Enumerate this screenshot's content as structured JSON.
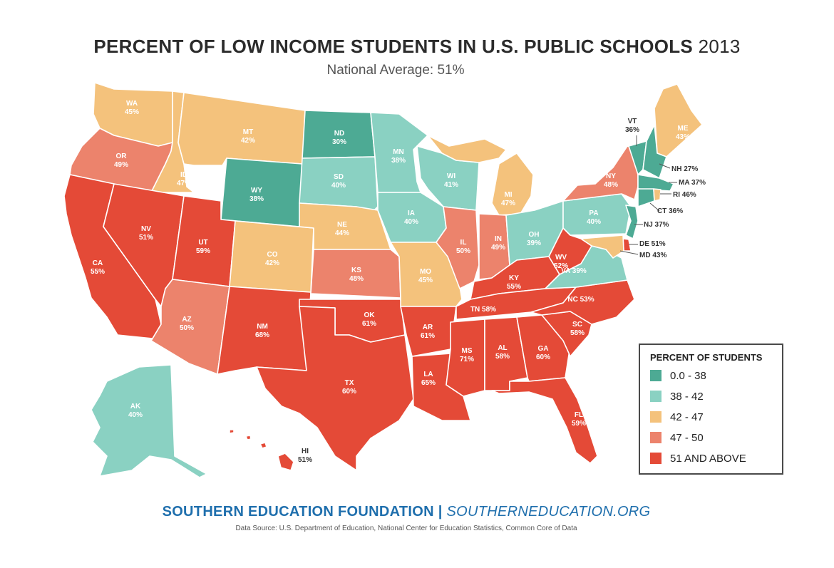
{
  "title": {
    "main": "PERCENT OF LOW INCOME STUDENTS IN U.S. PUBLIC SCHOOLS",
    "year": "2013"
  },
  "subtitle": "National Average: 51%",
  "colors": {
    "bin_0_38": "#4daa94",
    "bin_38_42": "#8ad1c2",
    "bin_42_47": "#f4c27c",
    "bin_47_50": "#ec836c",
    "bin_51_up": "#e44a37"
  },
  "legend": {
    "title": "PERCENT OF STUDENTS",
    "items": [
      {
        "label": "0.0 - 38",
        "color": "#4daa94"
      },
      {
        "label": "38 - 42",
        "color": "#8ad1c2"
      },
      {
        "label": "42 - 47",
        "color": "#f4c27c"
      },
      {
        "label": "47 - 50",
        "color": "#ec836c"
      },
      {
        "label": "51 AND ABOVE",
        "color": "#e44a37"
      }
    ]
  },
  "states": {
    "WA": {
      "abbr": "WA",
      "pct": "45%",
      "value": 45
    },
    "OR": {
      "abbr": "OR",
      "pct": "49%",
      "value": 49
    },
    "CA": {
      "abbr": "CA",
      "pct": "55%",
      "value": 55
    },
    "ID": {
      "abbr": "ID",
      "pct": "47%",
      "value": 47
    },
    "NV": {
      "abbr": "NV",
      "pct": "51%",
      "value": 51
    },
    "MT": {
      "abbr": "MT",
      "pct": "42%",
      "value": 42
    },
    "WY": {
      "abbr": "WY",
      "pct": "38%",
      "value": 38
    },
    "UT": {
      "abbr": "UT",
      "pct": "59%",
      "value": 59
    },
    "AZ": {
      "abbr": "AZ",
      "pct": "50%",
      "value": 50
    },
    "CO": {
      "abbr": "CO",
      "pct": "42%",
      "value": 42
    },
    "NM": {
      "abbr": "NM",
      "pct": "68%",
      "value": 68
    },
    "ND": {
      "abbr": "ND",
      "pct": "30%",
      "value": 30
    },
    "SD": {
      "abbr": "SD",
      "pct": "40%",
      "value": 40
    },
    "NE": {
      "abbr": "NE",
      "pct": "44%",
      "value": 44
    },
    "KS": {
      "abbr": "KS",
      "pct": "48%",
      "value": 48
    },
    "OK": {
      "abbr": "OK",
      "pct": "61%",
      "value": 61
    },
    "TX": {
      "abbr": "TX",
      "pct": "60%",
      "value": 60
    },
    "MN": {
      "abbr": "MN",
      "pct": "38%",
      "value": 38
    },
    "IA": {
      "abbr": "IA",
      "pct": "40%",
      "value": 40
    },
    "MO": {
      "abbr": "MO",
      "pct": "45%",
      "value": 45
    },
    "AR": {
      "abbr": "AR",
      "pct": "61%",
      "value": 61
    },
    "LA": {
      "abbr": "LA",
      "pct": "65%",
      "value": 65
    },
    "WI": {
      "abbr": "WI",
      "pct": "41%",
      "value": 41
    },
    "IL": {
      "abbr": "IL",
      "pct": "50%",
      "value": 50
    },
    "MI": {
      "abbr": "MI",
      "pct": "47%",
      "value": 47
    },
    "IN": {
      "abbr": "IN",
      "pct": "49%",
      "value": 49
    },
    "OH": {
      "abbr": "OH",
      "pct": "39%",
      "value": 39
    },
    "KY": {
      "abbr": "KY",
      "pct": "55%",
      "value": 55
    },
    "TN": {
      "abbr": "TN",
      "pct": "58%",
      "value": 58
    },
    "MS": {
      "abbr": "MS",
      "pct": "71%",
      "value": 71
    },
    "AL": {
      "abbr": "AL",
      "pct": "58%",
      "value": 58
    },
    "GA": {
      "abbr": "GA",
      "pct": "60%",
      "value": 60
    },
    "FL": {
      "abbr": "FL",
      "pct": "59%",
      "value": 59
    },
    "SC": {
      "abbr": "SC",
      "pct": "58%",
      "value": 58
    },
    "NC": {
      "abbr": "NC",
      "pct": "53%",
      "value": 53
    },
    "VA": {
      "abbr": "VA",
      "pct": "39%",
      "value": 39
    },
    "WV": {
      "abbr": "WV",
      "pct": "52%",
      "value": 52
    },
    "PA": {
      "abbr": "PA",
      "pct": "40%",
      "value": 40
    },
    "NY": {
      "abbr": "NY",
      "pct": "48%",
      "value": 48
    },
    "ME": {
      "abbr": "ME",
      "pct": "43%",
      "value": 43
    },
    "VT": {
      "abbr": "VT",
      "pct": "36%",
      "value": 36
    },
    "NH": {
      "abbr": "NH",
      "pct": "27%",
      "value": 27
    },
    "MA": {
      "abbr": "MA",
      "pct": "37%",
      "value": 37
    },
    "RI": {
      "abbr": "RI",
      "pct": "46%",
      "value": 46
    },
    "CT": {
      "abbr": "CT",
      "pct": "36%",
      "value": 36
    },
    "NJ": {
      "abbr": "NJ",
      "pct": "37%",
      "value": 37
    },
    "DE": {
      "abbr": "DE",
      "pct": "51%",
      "value": 51
    },
    "MD": {
      "abbr": "MD",
      "pct": "43%",
      "value": 43
    },
    "AK": {
      "abbr": "AK",
      "pct": "40%",
      "value": 40
    },
    "HI": {
      "abbr": "HI",
      "pct": "51%",
      "value": 51
    }
  },
  "footer": {
    "org": "SOUTHERN EDUCATION FOUNDATION",
    "separator": "|",
    "url": "SOUTHERNEDUCATION.ORG",
    "source": "Data Source: U.S. Department of Education, National Center for Education Statistics, Common Core of Data"
  }
}
